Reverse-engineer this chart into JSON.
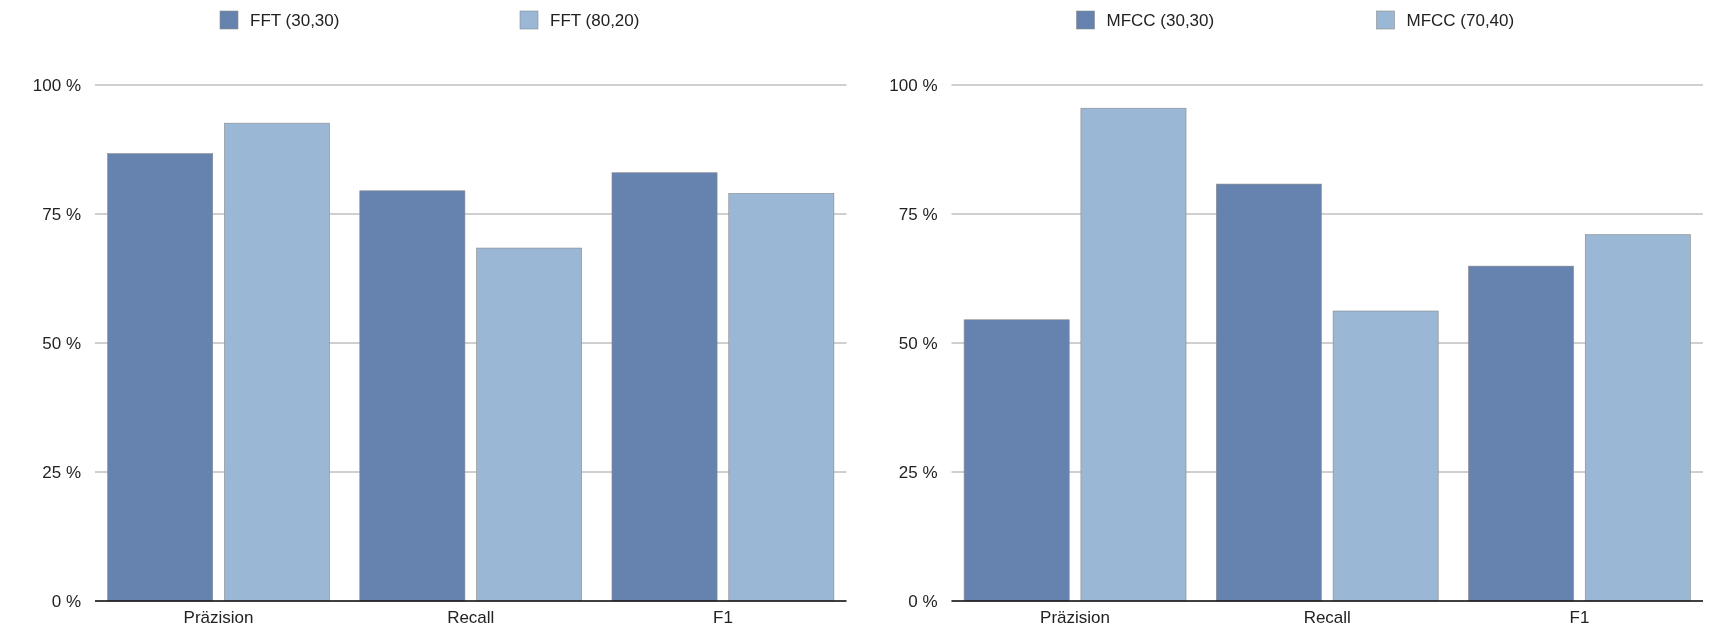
{
  "chart_data": [
    {
      "type": "bar",
      "categories": [
        "Präzision",
        "Recall",
        "F1"
      ],
      "series": [
        {
          "name": "FFT (30,30)",
          "color": "#6683b0",
          "values": [
            86.7,
            79.5,
            83.0
          ]
        },
        {
          "name": "FFT (80,20)",
          "color": "#9bb7d6",
          "values": [
            92.6,
            68.4,
            79.0
          ]
        }
      ],
      "ylim": [
        0,
        100
      ],
      "yticks": [
        {
          "value": 0,
          "label": "0 %"
        },
        {
          "value": 25,
          "label": "25 %"
        },
        {
          "value": 50,
          "label": "50 %"
        },
        {
          "value": 75,
          "label": "75 %"
        },
        {
          "value": 100,
          "label": "100 %"
        }
      ],
      "grid": "y",
      "legend": "top"
    },
    {
      "type": "bar",
      "categories": [
        "Präzision",
        "Recall",
        "F1"
      ],
      "series": [
        {
          "name": "MFCC (30,30)",
          "color": "#6683b0",
          "values": [
            54.5,
            80.8,
            64.9
          ]
        },
        {
          "name": "MFCC (70,40)",
          "color": "#9bb7d6",
          "values": [
            95.5,
            56.2,
            71.0
          ]
        }
      ],
      "ylim": [
        0,
        100
      ],
      "yticks": [
        {
          "value": 0,
          "label": "0 %"
        },
        {
          "value": 25,
          "label": "25 %"
        },
        {
          "value": 50,
          "label": "50 %"
        },
        {
          "value": 75,
          "label": "75 %"
        },
        {
          "value": 100,
          "label": "100 %"
        }
      ],
      "grid": "y",
      "legend": "top"
    }
  ]
}
